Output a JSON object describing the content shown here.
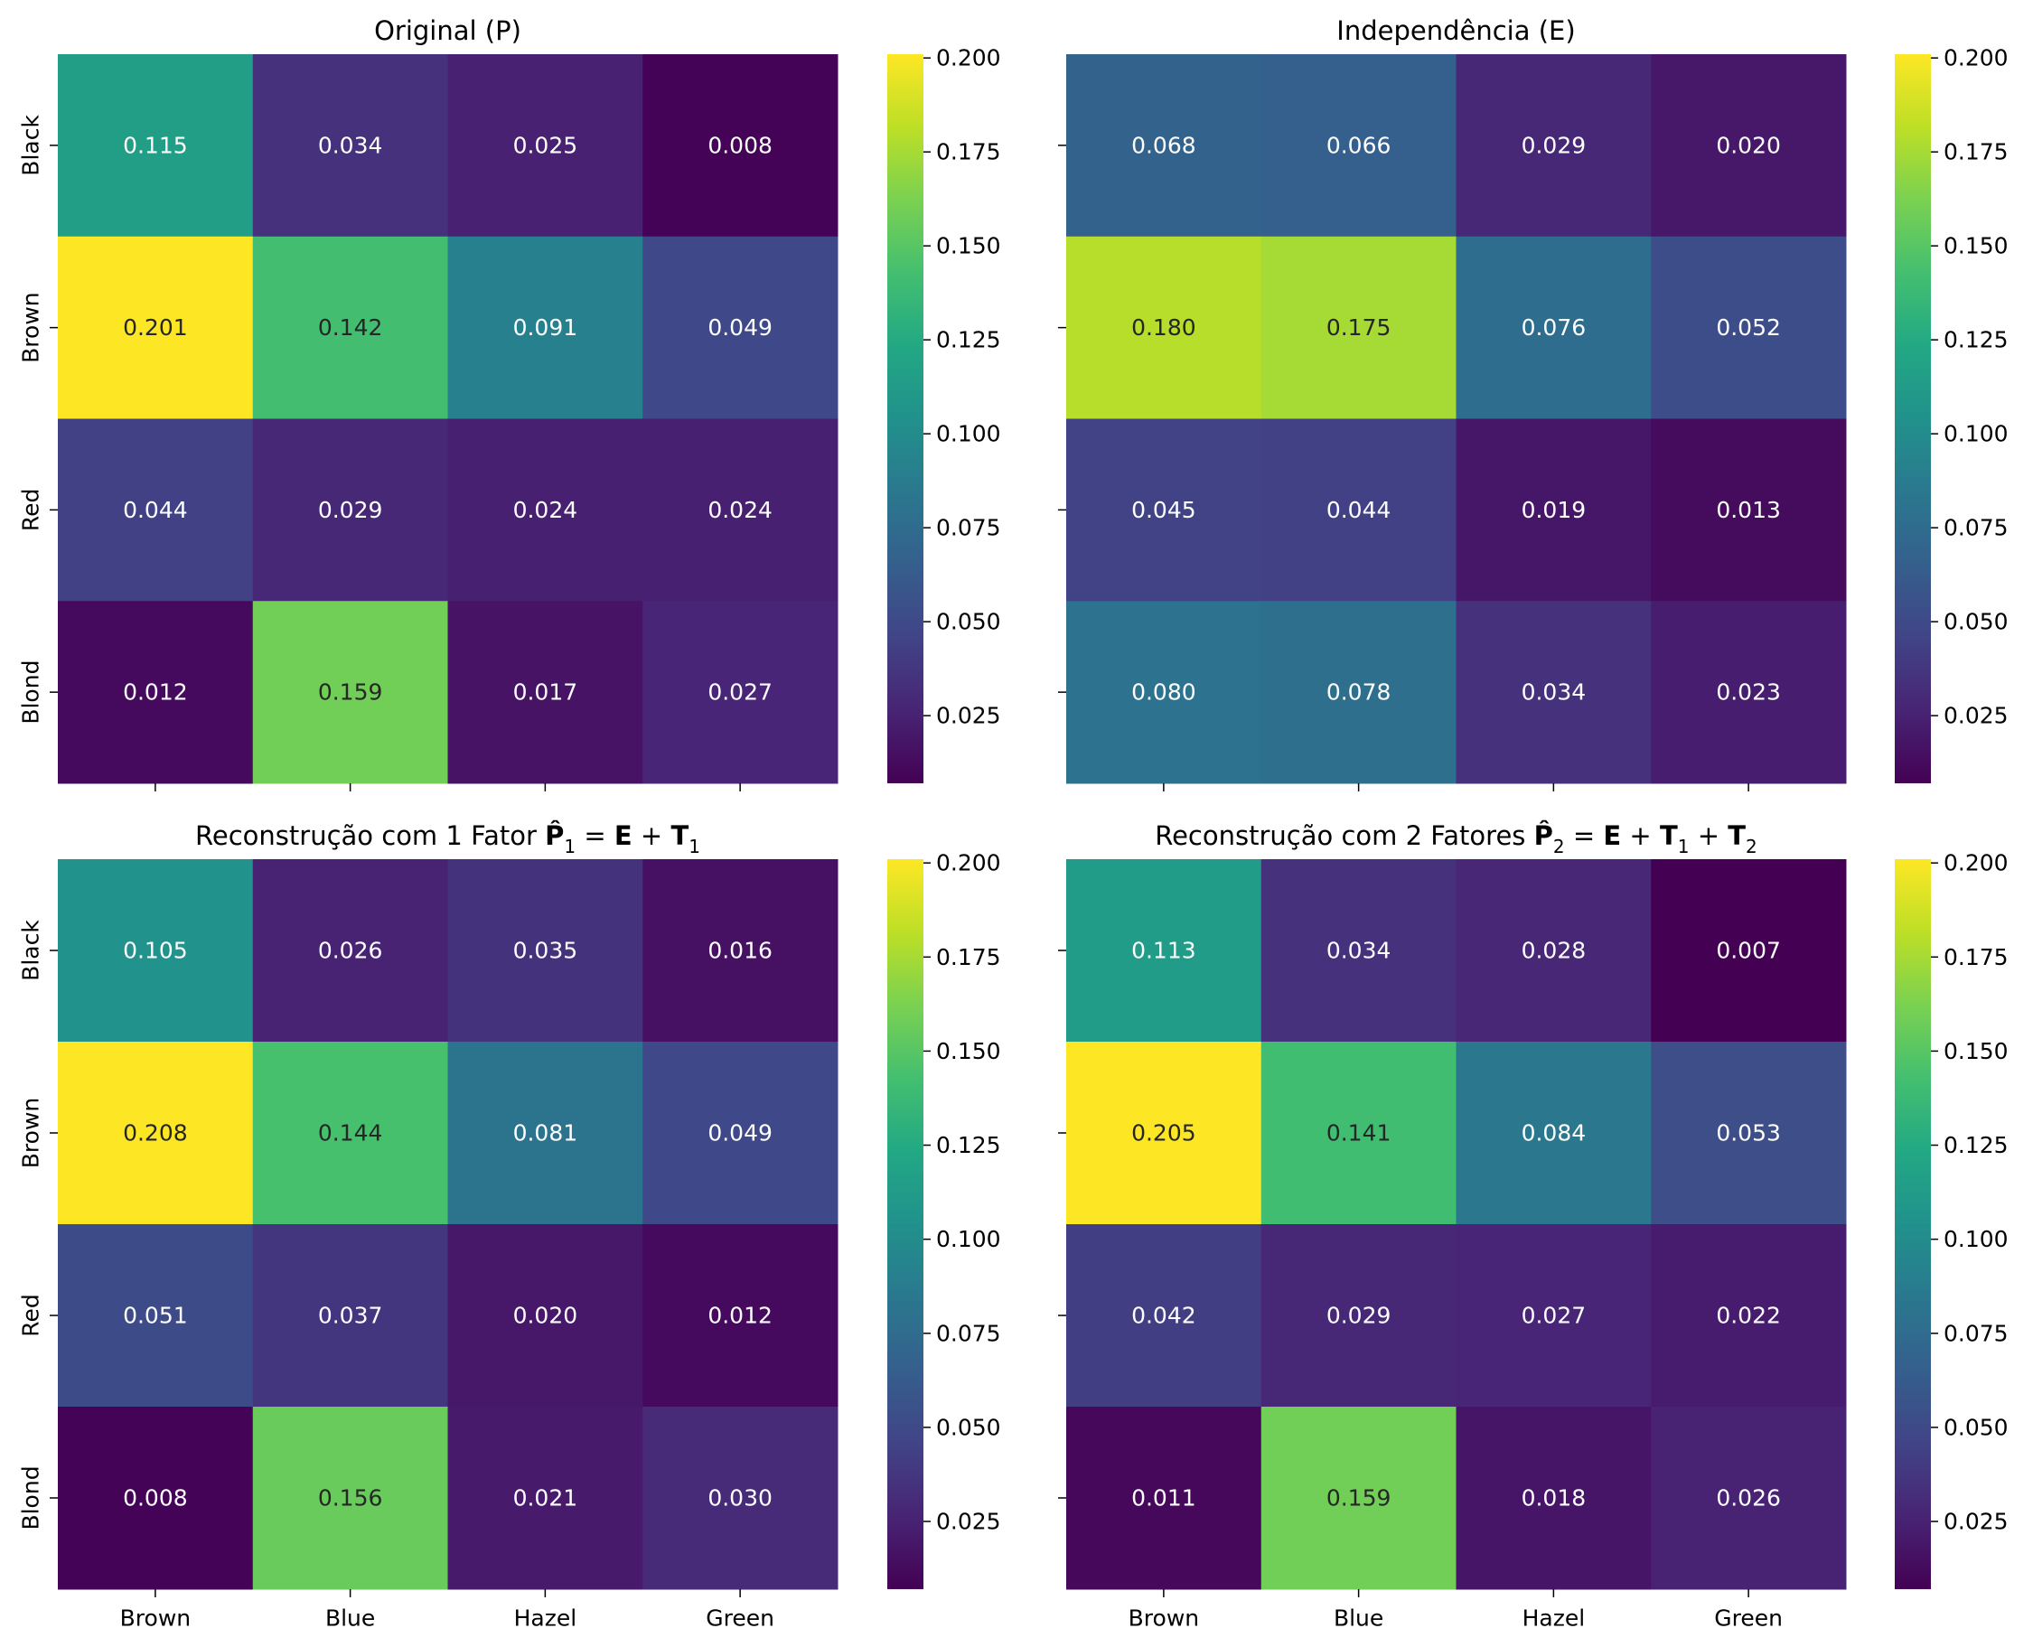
{
  "chart_data": [
    {
      "type": "heatmap",
      "title": "Original (P)",
      "rows": [
        "Black",
        "Brown",
        "Red",
        "Blond"
      ],
      "columns": [
        "Brown",
        "Blue",
        "Hazel",
        "Green"
      ],
      "values": [
        [
          0.115,
          0.034,
          0.025,
          0.008
        ],
        [
          0.201,
          0.142,
          0.091,
          0.049
        ],
        [
          0.044,
          0.029,
          0.024,
          0.024
        ],
        [
          0.012,
          0.159,
          0.017,
          0.027
        ]
      ],
      "show_row_labels": true,
      "show_column_labels": false,
      "colormap": "viridis",
      "vmin": 0.007,
      "vmax": 0.201,
      "colorbar_ticks": [
        "0.025",
        "0.050",
        "0.075",
        "0.100",
        "0.125",
        "0.150",
        "0.175",
        "0.200"
      ]
    },
    {
      "type": "heatmap",
      "title": "Independência (E)",
      "rows": [
        "Black",
        "Brown",
        "Red",
        "Blond"
      ],
      "columns": [
        "Brown",
        "Blue",
        "Hazel",
        "Green"
      ],
      "values": [
        [
          0.068,
          0.066,
          0.029,
          0.02
        ],
        [
          0.18,
          0.175,
          0.076,
          0.052
        ],
        [
          0.045,
          0.044,
          0.019,
          0.013
        ],
        [
          0.08,
          0.078,
          0.034,
          0.023
        ]
      ],
      "show_row_labels": false,
      "show_column_labels": false,
      "colormap": "viridis",
      "vmin": 0.007,
      "vmax": 0.201,
      "colorbar_ticks": [
        "0.025",
        "0.050",
        "0.075",
        "0.100",
        "0.125",
        "0.150",
        "0.175",
        "0.200"
      ]
    },
    {
      "type": "heatmap",
      "title": "Reconstrução com 1 Fator",
      "title_math": [
        {
          "t": "P̂",
          "bold": true
        },
        {
          "t": "1",
          "sub": true
        },
        {
          "t": " = "
        },
        {
          "t": "E",
          "bold": true
        },
        {
          "t": " + "
        },
        {
          "t": "T",
          "bold": true
        },
        {
          "t": "1",
          "sub": true
        }
      ],
      "rows": [
        "Black",
        "Brown",
        "Red",
        "Blond"
      ],
      "columns": [
        "Brown",
        "Blue",
        "Hazel",
        "Green"
      ],
      "values": [
        [
          0.105,
          0.026,
          0.035,
          0.016
        ],
        [
          0.208,
          0.144,
          0.081,
          0.049
        ],
        [
          0.051,
          0.037,
          0.02,
          0.012
        ],
        [
          0.008,
          0.156,
          0.021,
          0.03
        ]
      ],
      "show_row_labels": true,
      "show_column_labels": true,
      "colormap": "viridis",
      "vmin": 0.007,
      "vmax": 0.201,
      "colorbar_ticks": [
        "0.025",
        "0.050",
        "0.075",
        "0.100",
        "0.125",
        "0.150",
        "0.175",
        "0.200"
      ]
    },
    {
      "type": "heatmap",
      "title": "Reconstrução com 2 Fatores",
      "title_math": [
        {
          "t": "P̂",
          "bold": true
        },
        {
          "t": "2",
          "sub": true
        },
        {
          "t": " = "
        },
        {
          "t": "E",
          "bold": true
        },
        {
          "t": " + "
        },
        {
          "t": "T",
          "bold": true
        },
        {
          "t": "1",
          "sub": true
        },
        {
          "t": " + "
        },
        {
          "t": "T",
          "bold": true
        },
        {
          "t": "2",
          "sub": true
        }
      ],
      "rows": [
        "Black",
        "Brown",
        "Red",
        "Blond"
      ],
      "columns": [
        "Brown",
        "Blue",
        "Hazel",
        "Green"
      ],
      "values": [
        [
          0.113,
          0.034,
          0.028,
          0.007
        ],
        [
          0.205,
          0.141,
          0.084,
          0.053
        ],
        [
          0.042,
          0.029,
          0.027,
          0.022
        ],
        [
          0.011,
          0.159,
          0.018,
          0.026
        ]
      ],
      "show_row_labels": false,
      "show_column_labels": true,
      "colormap": "viridis",
      "vmin": 0.007,
      "vmax": 0.201,
      "colorbar_ticks": [
        "0.025",
        "0.050",
        "0.075",
        "0.100",
        "0.125",
        "0.150",
        "0.175",
        "0.200"
      ]
    }
  ]
}
